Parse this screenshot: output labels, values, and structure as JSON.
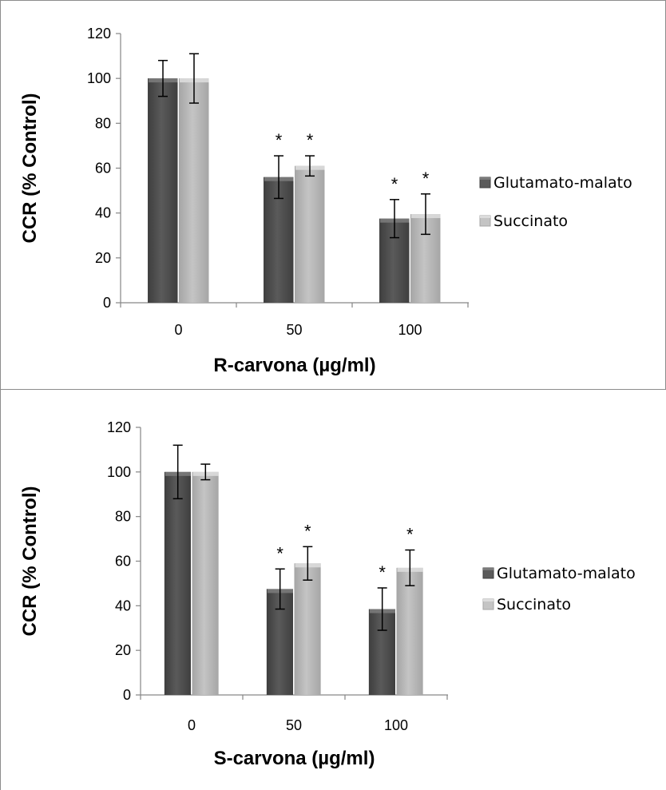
{
  "colors": {
    "glutamato_face": "#5a5a5a",
    "glutamato_side": "#3f3f3f",
    "glutamato_top": "#7a7a7a",
    "succinato_face": "#c4c4c4",
    "succinato_side": "#a6a6a6",
    "succinato_top": "#dcdcdc"
  },
  "chart_data": [
    {
      "type": "bar",
      "categories": [
        "0",
        "50",
        "100"
      ],
      "xlabel": "R-carvona (µg/ml)",
      "ylabel": "CCR (% Control)",
      "ylim": [
        0,
        120
      ],
      "yticks": [
        "0",
        "20",
        "40",
        "60",
        "80",
        "100",
        "120"
      ],
      "grid": false,
      "legend_position": "right",
      "series": [
        {
          "name": "Glutamato-malato",
          "values": [
            100,
            56,
            37.5
          ],
          "errors": [
            8,
            9.5,
            8.5
          ],
          "significance": [
            "",
            "*",
            "*"
          ]
        },
        {
          "name": "Succinato",
          "values": [
            100,
            61,
            39.5
          ],
          "errors": [
            11,
            4.5,
            9
          ],
          "significance": [
            "",
            "*",
            "*"
          ]
        }
      ]
    },
    {
      "type": "bar",
      "categories": [
        "0",
        "50",
        "100"
      ],
      "xlabel": "S-carvona (µg/ml)",
      "ylabel": "CCR (% Control)",
      "ylim": [
        0,
        120
      ],
      "yticks": [
        "0",
        "20",
        "40",
        "60",
        "80",
        "100",
        "120"
      ],
      "grid": false,
      "legend_position": "right",
      "series": [
        {
          "name": "Glutamato-malato",
          "values": [
            100,
            47.5,
            38.5
          ],
          "errors": [
            12,
            9,
            9.5
          ],
          "significance": [
            "",
            "*",
            "*"
          ]
        },
        {
          "name": "Succinato",
          "values": [
            100,
            59,
            57
          ],
          "errors": [
            3.5,
            7.5,
            8
          ],
          "significance": [
            "",
            "*",
            "*"
          ]
        }
      ]
    }
  ]
}
